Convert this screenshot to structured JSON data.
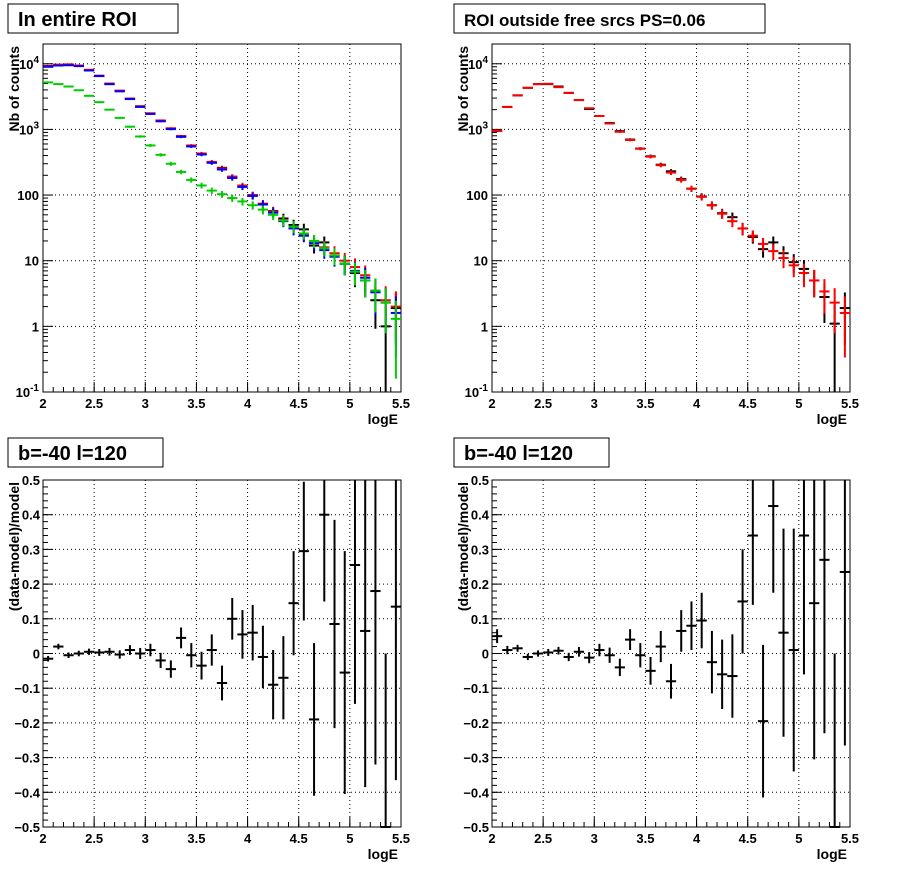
{
  "chart_data": [
    {
      "type": "scatter",
      "title": "In entire ROI",
      "xlabel": "logE",
      "ylabel": "Nb of counts",
      "xlim": [
        2,
        5.5
      ],
      "ylim": [
        0.1,
        20000
      ],
      "yscale": "log",
      "grid": true,
      "x": [
        2.05,
        2.15,
        2.25,
        2.35,
        2.45,
        2.55,
        2.65,
        2.75,
        2.85,
        2.95,
        3.05,
        3.15,
        3.25,
        3.35,
        3.45,
        3.55,
        3.65,
        3.75,
        3.85,
        3.95,
        4.05,
        4.15,
        4.25,
        4.35,
        4.45,
        4.55,
        4.65,
        4.75,
        4.85,
        4.95,
        5.05,
        5.15,
        5.25,
        5.35,
        5.45
      ],
      "series": [
        {
          "color": "#000000",
          "values": [
            9000,
            9600,
            9600,
            9400,
            8000,
            6500,
            4900,
            3850,
            2950,
            2250,
            1750,
            1350,
            1030,
            790,
            560,
            420,
            315,
            260,
            190,
            135,
            100,
            72,
            57,
            44,
            35,
            30,
            17,
            19,
            12,
            9,
            6.5,
            5,
            2.5,
            1,
            1.9
          ]
        },
        {
          "color": "#ff0000",
          "values": [
            9300,
            9700,
            9800,
            9400,
            8100,
            6600,
            5000,
            3900,
            2950,
            2250,
            1760,
            1370,
            1040,
            790,
            570,
            430,
            320,
            255,
            190,
            140,
            100,
            74,
            56,
            42,
            33,
            25,
            20,
            16,
            13,
            10,
            8,
            6,
            3.5,
            2.5,
            2
          ]
        },
        {
          "color": "#0000ff",
          "values": [
            9100,
            9400,
            9500,
            9200,
            7900,
            6500,
            4900,
            3800,
            2900,
            2200,
            1720,
            1330,
            1010,
            770,
            550,
            415,
            310,
            245,
            182,
            133,
            97,
            72,
            54,
            40,
            31,
            24,
            18.5,
            14.5,
            11.5,
            9,
            7,
            5.5,
            3.3,
            2.3,
            1.6
          ]
        },
        {
          "color": "#00cc00",
          "values": [
            5200,
            4900,
            4500,
            3950,
            3250,
            2600,
            2000,
            1500,
            1100,
            780,
            570,
            410,
            300,
            225,
            170,
            140,
            117,
            103,
            90,
            80,
            70,
            60,
            50,
            41,
            33,
            26,
            20,
            15.5,
            12,
            9,
            6.8,
            5,
            3.5,
            2.3,
            1.3
          ]
        }
      ]
    },
    {
      "type": "scatter",
      "title": "ROI outside free srcs PS=0.06",
      "xlabel": "logE",
      "ylabel": "Nb of counts",
      "xlim": [
        2,
        5.5
      ],
      "ylim": [
        0.1,
        20000
      ],
      "yscale": "log",
      "grid": true,
      "x": [
        2.05,
        2.15,
        2.25,
        2.35,
        2.45,
        2.55,
        2.65,
        2.75,
        2.85,
        2.95,
        3.05,
        3.15,
        3.25,
        3.35,
        3.45,
        3.55,
        3.65,
        3.75,
        3.85,
        3.95,
        4.05,
        4.15,
        4.25,
        4.35,
        4.45,
        4.55,
        4.65,
        4.75,
        4.85,
        4.95,
        5.05,
        5.15,
        5.25,
        5.35,
        5.45
      ],
      "series": [
        {
          "color": "#000000",
          "values": [
            950,
            2200,
            3300,
            4300,
            4900,
            4900,
            4500,
            3600,
            2800,
            2050,
            1600,
            1250,
            940,
            700,
            510,
            390,
            290,
            230,
            175,
            125,
            95,
            70,
            53,
            46,
            31,
            23,
            15,
            19,
            13,
            9.5,
            7.5,
            5,
            2.8,
            1.1,
            1.9
          ]
        },
        {
          "color": "#ff0000",
          "values": [
            960,
            2200,
            3300,
            4300,
            4900,
            4950,
            4400,
            3600,
            2800,
            2100,
            1600,
            1230,
            920,
            690,
            510,
            385,
            285,
            220,
            170,
            125,
            94,
            70,
            52,
            40,
            31,
            24,
            18,
            14,
            11,
            8.5,
            6.5,
            5,
            3.4,
            2.3,
            1.6
          ]
        }
      ]
    },
    {
      "type": "scatter",
      "title": "b=-40 l=120",
      "xlabel": "logE",
      "ylabel": "(data-model)/model",
      "xlim": [
        2,
        5.5
      ],
      "ylim": [
        -0.5,
        0.5
      ],
      "grid": true,
      "x": [
        2.05,
        2.15,
        2.25,
        2.35,
        2.45,
        2.55,
        2.65,
        2.75,
        2.85,
        2.95,
        3.05,
        3.15,
        3.25,
        3.35,
        3.45,
        3.55,
        3.65,
        3.75,
        3.85,
        3.95,
        4.05,
        4.15,
        4.25,
        4.35,
        4.45,
        4.55,
        4.65,
        4.75,
        4.85,
        4.95,
        5.05,
        5.15,
        5.25,
        5.35,
        5.45
      ],
      "series": [
        {
          "color": "#000000",
          "values": [
            -0.015,
            0.02,
            -0.005,
            0.0,
            0.005,
            0.003,
            0.005,
            -0.003,
            0.01,
            0.0,
            0.01,
            -0.02,
            -0.045,
            0.045,
            -0.005,
            -0.035,
            0.01,
            -0.085,
            0.1,
            0.055,
            0.06,
            -0.01,
            -0.09,
            -0.07,
            0.145,
            0.295,
            -0.19,
            0.4,
            0.085,
            -0.055,
            0.255,
            0.065,
            0.18,
            -0.5,
            0.135
          ],
          "errors": [
            0.008,
            0.008,
            0.008,
            0.008,
            0.009,
            0.01,
            0.011,
            0.012,
            0.014,
            0.016,
            0.018,
            0.022,
            0.025,
            0.03,
            0.035,
            0.04,
            0.045,
            0.05,
            0.06,
            0.07,
            0.08,
            0.09,
            0.1,
            0.12,
            0.15,
            0.2,
            0.22,
            0.25,
            0.3,
            0.35,
            0.4,
            0.45,
            0.5,
            0.5,
            0.5
          ]
        }
      ]
    },
    {
      "type": "scatter",
      "title": "b=-40 l=120",
      "xlabel": "logE",
      "ylabel": "(data-model)/model",
      "xlim": [
        2,
        5.5
      ],
      "ylim": [
        -0.5,
        0.5
      ],
      "grid": true,
      "x": [
        2.05,
        2.15,
        2.25,
        2.35,
        2.45,
        2.55,
        2.65,
        2.75,
        2.85,
        2.95,
        3.05,
        3.15,
        3.25,
        3.35,
        3.45,
        3.55,
        3.65,
        3.75,
        3.85,
        3.95,
        4.05,
        4.15,
        4.25,
        4.35,
        4.45,
        4.55,
        4.65,
        4.75,
        4.85,
        4.95,
        5.05,
        5.15,
        5.25,
        5.35,
        5.45
      ],
      "series": [
        {
          "color": "#000000",
          "values": [
            0.05,
            0.01,
            0.015,
            -0.01,
            0.0,
            0.003,
            0.008,
            -0.01,
            0.005,
            -0.012,
            0.01,
            -0.005,
            -0.04,
            0.04,
            -0.005,
            -0.05,
            0.02,
            -0.08,
            0.065,
            0.08,
            0.095,
            -0.025,
            -0.06,
            -0.065,
            0.15,
            0.34,
            -0.195,
            0.425,
            0.06,
            0.01,
            0.34,
            0.145,
            0.27,
            -0.5,
            0.235
          ],
          "errors": [
            0.02,
            0.012,
            0.01,
            0.009,
            0.009,
            0.01,
            0.011,
            0.012,
            0.014,
            0.016,
            0.018,
            0.022,
            0.025,
            0.03,
            0.035,
            0.04,
            0.045,
            0.05,
            0.06,
            0.07,
            0.08,
            0.09,
            0.1,
            0.12,
            0.15,
            0.2,
            0.22,
            0.25,
            0.3,
            0.35,
            0.4,
            0.45,
            0.5,
            0.5,
            0.5
          ]
        }
      ]
    }
  ]
}
